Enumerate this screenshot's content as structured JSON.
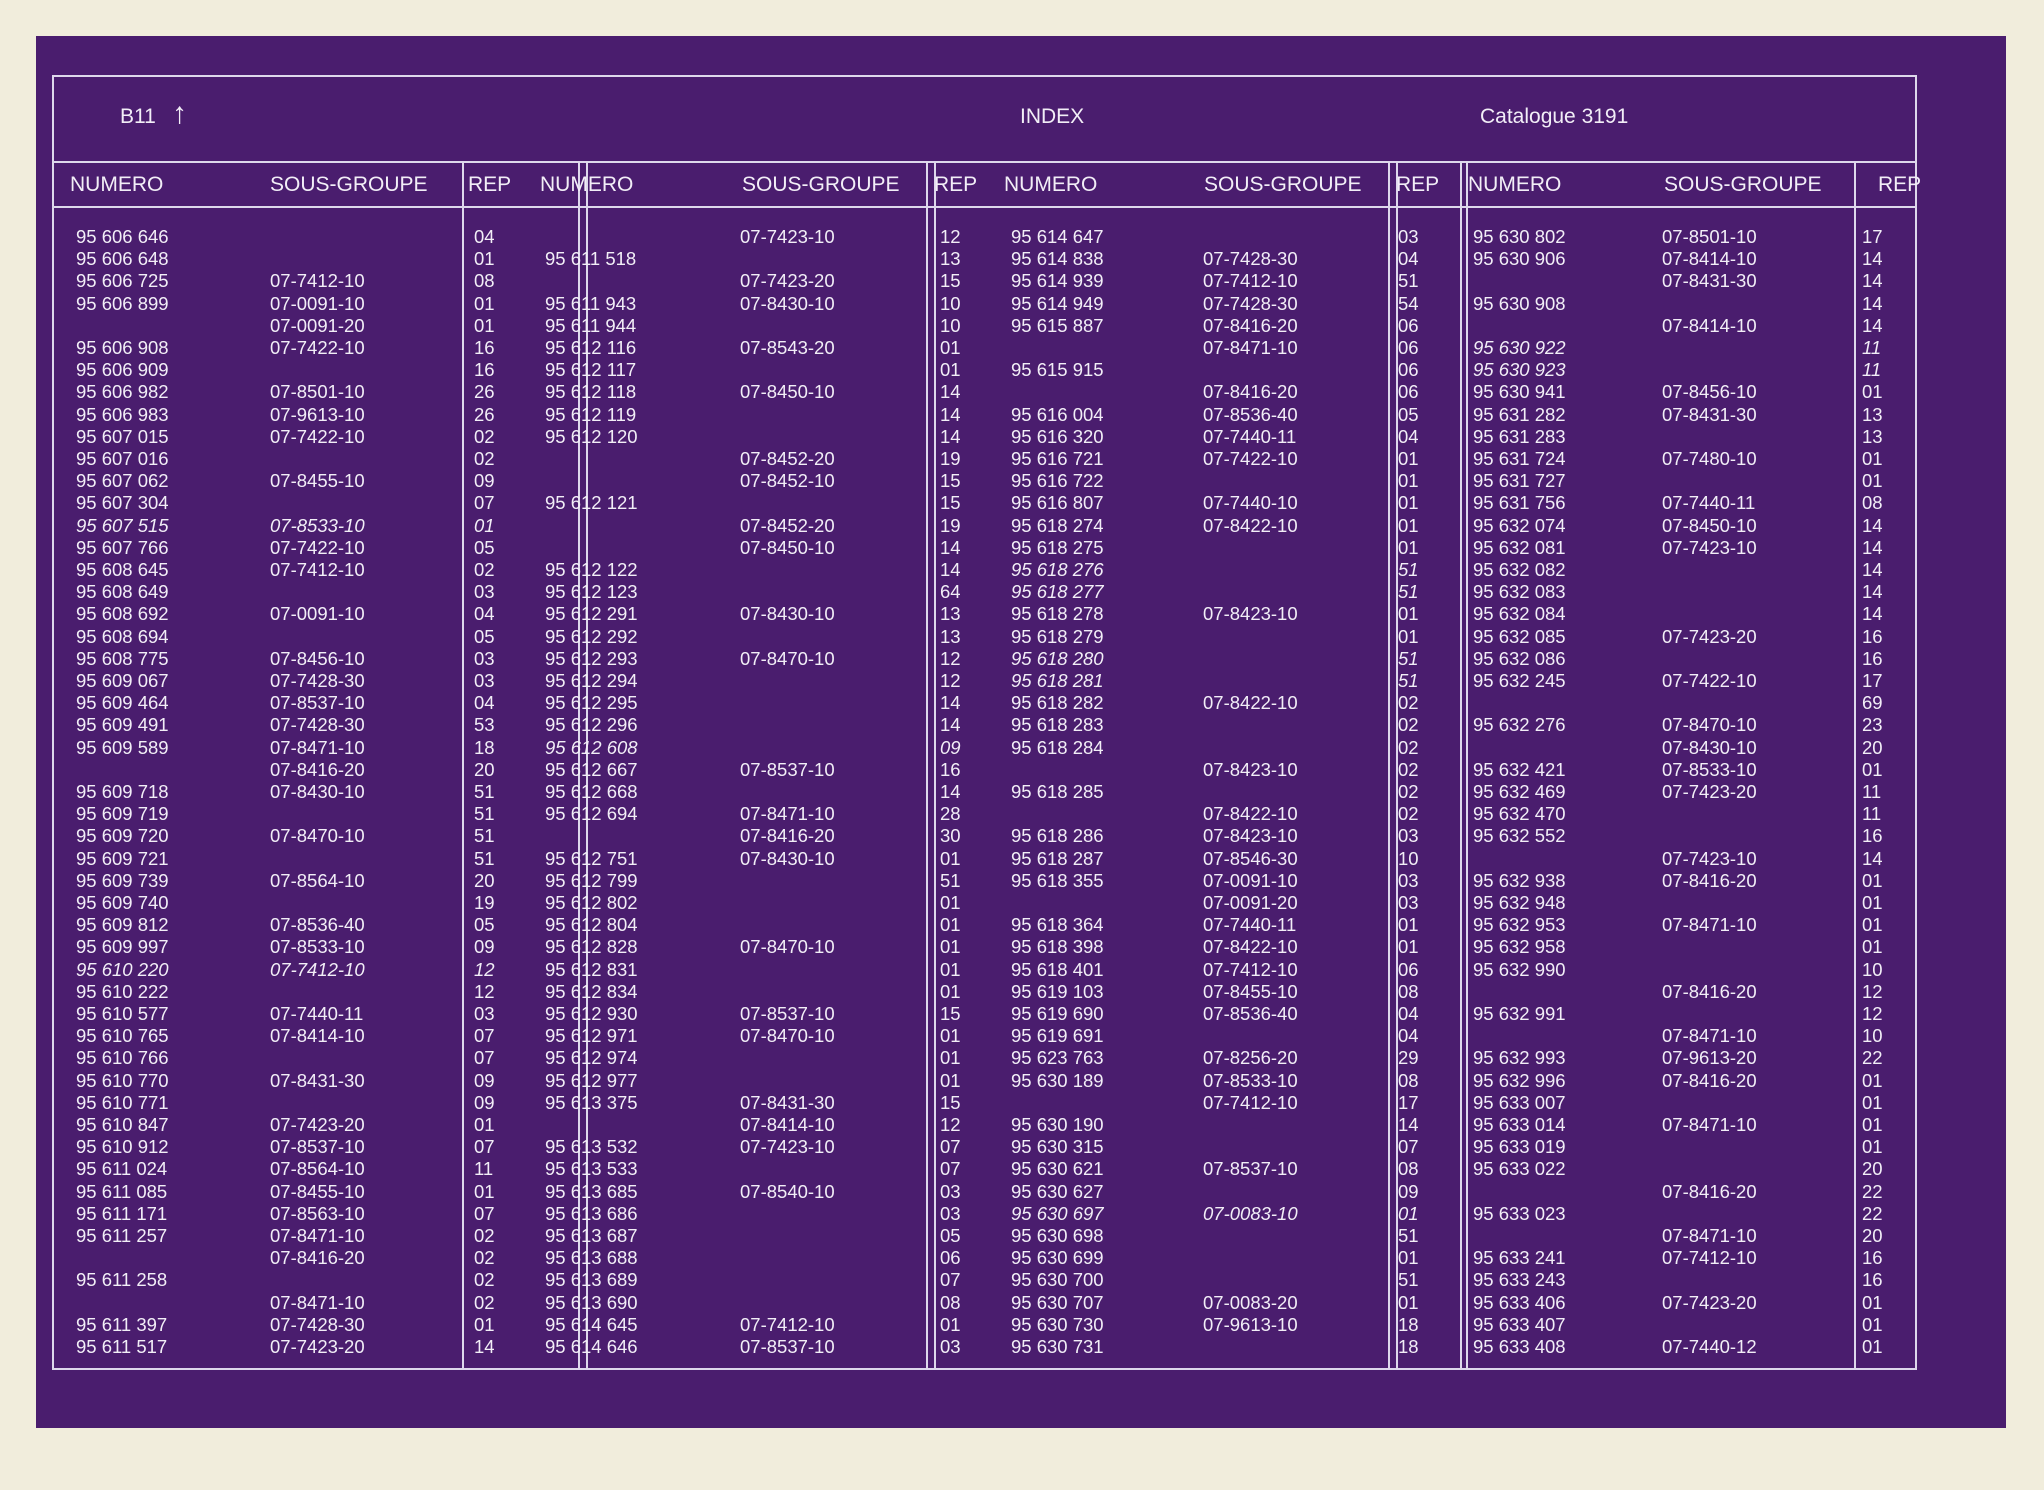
{
  "header": {
    "code": "B11",
    "arrow": "↑",
    "title": "INDEX",
    "catalogue": "Catalogue  3191"
  },
  "column_labels": {
    "numero": "NUMERO",
    "sous_groupe": "SOUS-GROUPE",
    "rep": "REP"
  },
  "panels": [
    {
      "rows": [
        {
          "n": "95 606 646",
          "s": "",
          "r": "04"
        },
        {
          "n": "95 606 648",
          "s": "",
          "r": "01"
        },
        {
          "n": "95 606 725",
          "s": "07-7412-10",
          "r": "08"
        },
        {
          "n": "95 606 899",
          "s": "07-0091-10",
          "r": "01"
        },
        {
          "n": "",
          "s": "07-0091-20",
          "r": "01"
        },
        {
          "n": "95 606 908",
          "s": "07-7422-10",
          "r": "16"
        },
        {
          "n": "95 606 909",
          "s": "",
          "r": "16"
        },
        {
          "n": "95 606 982",
          "s": "07-8501-10",
          "r": "26"
        },
        {
          "n": "95 606 983",
          "s": "07-9613-10",
          "r": "26"
        },
        {
          "n": "95 607 015",
          "s": "07-7422-10",
          "r": "02"
        },
        {
          "n": "95 607 016",
          "s": "",
          "r": "02"
        },
        {
          "n": "95 607 062",
          "s": "07-8455-10",
          "r": "09"
        },
        {
          "n": "95 607 304",
          "s": "",
          "r": "07"
        },
        {
          "n": "95 607 515",
          "s": "07-8533-10",
          "r": "01",
          "i": true
        },
        {
          "n": "95 607 766",
          "s": "07-7422-10",
          "r": "05"
        },
        {
          "n": "95 608 645",
          "s": "07-7412-10",
          "r": "02"
        },
        {
          "n": "95 608 649",
          "s": "",
          "r": "03"
        },
        {
          "n": "95 608 692",
          "s": "07-0091-10",
          "r": "04"
        },
        {
          "n": "95 608 694",
          "s": "",
          "r": "05"
        },
        {
          "n": "95 608 775",
          "s": "07-8456-10",
          "r": "03"
        },
        {
          "n": "95 609 067",
          "s": "07-7428-30",
          "r": "03"
        },
        {
          "n": "95 609 464",
          "s": "07-8537-10",
          "r": "04"
        },
        {
          "n": "95 609 491",
          "s": "07-7428-30",
          "r": "53"
        },
        {
          "n": "95 609 589",
          "s": "07-8471-10",
          "r": "18"
        },
        {
          "n": "",
          "s": "07-8416-20",
          "r": "20"
        },
        {
          "n": "95 609 718",
          "s": "07-8430-10",
          "r": "51"
        },
        {
          "n": "95 609 719",
          "s": "",
          "r": "51"
        },
        {
          "n": "95 609 720",
          "s": "07-8470-10",
          "r": "51"
        },
        {
          "n": "95 609 721",
          "s": "",
          "r": "51"
        },
        {
          "n": "95 609 739",
          "s": "07-8564-10",
          "r": "20"
        },
        {
          "n": "95 609 740",
          "s": "",
          "r": "19"
        },
        {
          "n": "95 609 812",
          "s": "07-8536-40",
          "r": "05"
        },
        {
          "n": "95 609 997",
          "s": "07-8533-10",
          "r": "09"
        },
        {
          "n": "95 610 220",
          "s": "07-7412-10",
          "r": "12",
          "i": true
        },
        {
          "n": "95 610 222",
          "s": "",
          "r": "12"
        },
        {
          "n": "95 610 577",
          "s": "07-7440-11",
          "r": "03"
        },
        {
          "n": "95 610 765",
          "s": "07-8414-10",
          "r": "07"
        },
        {
          "n": "95 610 766",
          "s": "",
          "r": "07"
        },
        {
          "n": "95 610 770",
          "s": "07-8431-30",
          "r": "09"
        },
        {
          "n": "95 610 771",
          "s": "",
          "r": "09"
        },
        {
          "n": "95 610 847",
          "s": "07-7423-20",
          "r": "01"
        },
        {
          "n": "95 610 912",
          "s": "07-8537-10",
          "r": "07"
        },
        {
          "n": "95 611 024",
          "s": "07-8564-10",
          "r": "11"
        },
        {
          "n": "95 611 085",
          "s": "07-8455-10",
          "r": "01"
        },
        {
          "n": "95 611 171",
          "s": "07-8563-10",
          "r": "07"
        },
        {
          "n": "95 611 257",
          "s": "07-8471-10",
          "r": "02"
        },
        {
          "n": "",
          "s": "07-8416-20",
          "r": "02"
        },
        {
          "n": "95 611 258",
          "s": "",
          "r": "02"
        },
        {
          "n": "",
          "s": "07-8471-10",
          "r": "02"
        },
        {
          "n": "95 611 397",
          "s": "07-7428-30",
          "r": "01"
        },
        {
          "n": "95 611 517",
          "s": "07-7423-20",
          "r": "14"
        }
      ]
    },
    {
      "rows": [
        {
          "n": "",
          "s": "07-7423-10",
          "r": "12"
        },
        {
          "n": "95 611 518",
          "s": "",
          "r": "13"
        },
        {
          "n": "",
          "s": "07-7423-20",
          "r": "15"
        },
        {
          "n": "95 611 943",
          "s": "07-8430-10",
          "r": "10"
        },
        {
          "n": "95 611 944",
          "s": "",
          "r": "10"
        },
        {
          "n": "95 612 116",
          "s": "07-8543-20",
          "r": "01"
        },
        {
          "n": "95 612 117",
          "s": "",
          "r": "01"
        },
        {
          "n": "95 612 118",
          "s": "07-8450-10",
          "r": "14"
        },
        {
          "n": "95 612 119",
          "s": "",
          "r": "14"
        },
        {
          "n": "95 612 120",
          "s": "",
          "r": "14"
        },
        {
          "n": "",
          "s": "07-8452-20",
          "r": "19"
        },
        {
          "n": "",
          "s": "07-8452-10",
          "r": "15"
        },
        {
          "n": "95 612 121",
          "s": "",
          "r": "15"
        },
        {
          "n": "",
          "s": "07-8452-20",
          "r": "19"
        },
        {
          "n": "",
          "s": "07-8450-10",
          "r": "14"
        },
        {
          "n": "95 612 122",
          "s": "",
          "r": "14"
        },
        {
          "n": "95 612 123",
          "s": "",
          "r": "64"
        },
        {
          "n": "95 612 291",
          "s": "07-8430-10",
          "r": "13"
        },
        {
          "n": "95 612 292",
          "s": "",
          "r": "13"
        },
        {
          "n": "95 612 293",
          "s": "07-8470-10",
          "r": "12"
        },
        {
          "n": "95 612 294",
          "s": "",
          "r": "12"
        },
        {
          "n": "95 612 295",
          "s": "",
          "r": "14"
        },
        {
          "n": "95 612 296",
          "s": "",
          "r": "14"
        },
        {
          "n": "95 612 608",
          "s": "",
          "r": "09",
          "i": true
        },
        {
          "n": "95 612 667",
          "s": "07-8537-10",
          "r": "16"
        },
        {
          "n": "95 612 668",
          "s": "",
          "r": "14"
        },
        {
          "n": "95 612 694",
          "s": "07-8471-10",
          "r": "28"
        },
        {
          "n": "",
          "s": "07-8416-20",
          "r": "30"
        },
        {
          "n": "95 612 751",
          "s": "07-8430-10",
          "r": "01"
        },
        {
          "n": "95 612 799",
          "s": "",
          "r": "51"
        },
        {
          "n": "95 612 802",
          "s": "",
          "r": "01"
        },
        {
          "n": "95 612 804",
          "s": "",
          "r": "01"
        },
        {
          "n": "95 612 828",
          "s": "07-8470-10",
          "r": "01"
        },
        {
          "n": "95 612 831",
          "s": "",
          "r": "01"
        },
        {
          "n": "95 612 834",
          "s": "",
          "r": "01"
        },
        {
          "n": "95 612 930",
          "s": "07-8537-10",
          "r": "15"
        },
        {
          "n": "95 612 971",
          "s": "07-8470-10",
          "r": "01"
        },
        {
          "n": "95 612 974",
          "s": "",
          "r": "01"
        },
        {
          "n": "95 612 977",
          "s": "",
          "r": "01"
        },
        {
          "n": "95 613 375",
          "s": "07-8431-30",
          "r": "15"
        },
        {
          "n": "",
          "s": "07-8414-10",
          "r": "12"
        },
        {
          "n": "95 613 532",
          "s": "07-7423-10",
          "r": "07"
        },
        {
          "n": "95 613 533",
          "s": "",
          "r": "07"
        },
        {
          "n": "95 613 685",
          "s": "07-8540-10",
          "r": "03"
        },
        {
          "n": "95 613 686",
          "s": "",
          "r": "03"
        },
        {
          "n": "95 613 687",
          "s": "",
          "r": "05"
        },
        {
          "n": "95 613 688",
          "s": "",
          "r": "06"
        },
        {
          "n": "95 613 689",
          "s": "",
          "r": "07"
        },
        {
          "n": "95 613 690",
          "s": "",
          "r": "08"
        },
        {
          "n": "95 614 645",
          "s": "07-7412-10",
          "r": "01"
        },
        {
          "n": "95 614 646",
          "s": "07-8537-10",
          "r": "03"
        }
      ]
    },
    {
      "rows": [
        {
          "n": "95 614 647",
          "s": "",
          "r": "03"
        },
        {
          "n": "95 614 838",
          "s": "07-7428-30",
          "r": "04"
        },
        {
          "n": "95 614 939",
          "s": "07-7412-10",
          "r": "51"
        },
        {
          "n": "95 614 949",
          "s": "07-7428-30",
          "r": "54"
        },
        {
          "n": "95 615 887",
          "s": "07-8416-20",
          "r": "06"
        },
        {
          "n": "",
          "s": "07-8471-10",
          "r": "06"
        },
        {
          "n": "95 615 915",
          "s": "",
          "r": "06"
        },
        {
          "n": "",
          "s": "07-8416-20",
          "r": "06"
        },
        {
          "n": "95 616 004",
          "s": "07-8536-40",
          "r": "05"
        },
        {
          "n": "95 616 320",
          "s": "07-7440-11",
          "r": "04"
        },
        {
          "n": "95 616 721",
          "s": "07-7422-10",
          "r": "01"
        },
        {
          "n": "95 616 722",
          "s": "",
          "r": "01"
        },
        {
          "n": "95 616 807",
          "s": "07-7440-10",
          "r": "01"
        },
        {
          "n": "95 618 274",
          "s": "07-8422-10",
          "r": "01"
        },
        {
          "n": "95 618 275",
          "s": "",
          "r": "01"
        },
        {
          "n": "95 618 276",
          "s": "",
          "r": "51",
          "i": true
        },
        {
          "n": "95 618 277",
          "s": "",
          "r": "51",
          "i": true
        },
        {
          "n": "95 618 278",
          "s": "07-8423-10",
          "r": "01"
        },
        {
          "n": "95 618 279",
          "s": "",
          "r": "01"
        },
        {
          "n": "95 618 280",
          "s": "",
          "r": "51",
          "i": true
        },
        {
          "n": "95 618 281",
          "s": "",
          "r": "51",
          "i": true
        },
        {
          "n": "95 618 282",
          "s": "07-8422-10",
          "r": "02"
        },
        {
          "n": "95 618 283",
          "s": "",
          "r": "02"
        },
        {
          "n": "95 618 284",
          "s": "",
          "r": "02"
        },
        {
          "n": "",
          "s": "07-8423-10",
          "r": "02"
        },
        {
          "n": "95 618 285",
          "s": "",
          "r": "02"
        },
        {
          "n": "",
          "s": "07-8422-10",
          "r": "02"
        },
        {
          "n": "95 618 286",
          "s": "07-8423-10",
          "r": "03"
        },
        {
          "n": "95 618 287",
          "s": "07-8546-30",
          "r": "10"
        },
        {
          "n": "95 618 355",
          "s": "07-0091-10",
          "r": "03"
        },
        {
          "n": "",
          "s": "07-0091-20",
          "r": "03"
        },
        {
          "n": "95 618 364",
          "s": "07-7440-11",
          "r": "01"
        },
        {
          "n": "95 618 398",
          "s": "07-8422-10",
          "r": "01"
        },
        {
          "n": "95 618 401",
          "s": "07-7412-10",
          "r": "06"
        },
        {
          "n": "95 619 103",
          "s": "07-8455-10",
          "r": "08"
        },
        {
          "n": "95 619 690",
          "s": "07-8536-40",
          "r": "04"
        },
        {
          "n": "95 619 691",
          "s": "",
          "r": "04"
        },
        {
          "n": "95 623 763",
          "s": "07-8256-20",
          "r": "29"
        },
        {
          "n": "95 630 189",
          "s": "07-8533-10",
          "r": "08"
        },
        {
          "n": "",
          "s": "07-7412-10",
          "r": "17"
        },
        {
          "n": "95 630 190",
          "s": "",
          "r": "14"
        },
        {
          "n": "95 630 315",
          "s": "",
          "r": "07"
        },
        {
          "n": "95 630 621",
          "s": "07-8537-10",
          "r": "08"
        },
        {
          "n": "95 630 627",
          "s": "",
          "r": "09"
        },
        {
          "n": "95 630 697",
          "s": "07-0083-10",
          "r": "01",
          "i": true
        },
        {
          "n": "95 630 698",
          "s": "",
          "r": "51"
        },
        {
          "n": "95 630 699",
          "s": "",
          "r": "01"
        },
        {
          "n": "95 630 700",
          "s": "",
          "r": "51"
        },
        {
          "n": "95 630 707",
          "s": "07-0083-20",
          "r": "01"
        },
        {
          "n": "95 630 730",
          "s": "07-9613-10",
          "r": "18"
        },
        {
          "n": "95 630 731",
          "s": "",
          "r": "18"
        }
      ]
    },
    {
      "rows": [
        {
          "n": "95 630 802",
          "s": "07-8501-10",
          "r": "17"
        },
        {
          "n": "95 630 906",
          "s": "07-8414-10",
          "r": "14"
        },
        {
          "n": "",
          "s": "07-8431-30",
          "r": "14"
        },
        {
          "n": "95 630 908",
          "s": "",
          "r": "14"
        },
        {
          "n": "",
          "s": "07-8414-10",
          "r": "14"
        },
        {
          "n": "95 630 922",
          "s": "",
          "r": "11",
          "i": true
        },
        {
          "n": "95 630 923",
          "s": "",
          "r": "11",
          "i": true
        },
        {
          "n": "95 630 941",
          "s": "07-8456-10",
          "r": "01"
        },
        {
          "n": "95 631 282",
          "s": "07-8431-30",
          "r": "13"
        },
        {
          "n": "95 631 283",
          "s": "",
          "r": "13"
        },
        {
          "n": "95 631 724",
          "s": "07-7480-10",
          "r": "01"
        },
        {
          "n": "95 631 727",
          "s": "",
          "r": "01"
        },
        {
          "n": "95 631 756",
          "s": "07-7440-11",
          "r": "08"
        },
        {
          "n": "95 632 074",
          "s": "07-8450-10",
          "r": "14"
        },
        {
          "n": "95 632 081",
          "s": "07-7423-10",
          "r": "14"
        },
        {
          "n": "95 632 082",
          "s": "",
          "r": "14"
        },
        {
          "n": "95 632 083",
          "s": "",
          "r": "14"
        },
        {
          "n": "95 632 084",
          "s": "",
          "r": "14"
        },
        {
          "n": "95 632 085",
          "s": "07-7423-20",
          "r": "16"
        },
        {
          "n": "95 632 086",
          "s": "",
          "r": "16"
        },
        {
          "n": "95 632 245",
          "s": "07-7422-10",
          "r": "17"
        },
        {
          "n": "",
          "s": "",
          "r": "69"
        },
        {
          "n": "95 632 276",
          "s": "07-8470-10",
          "r": "23"
        },
        {
          "n": "",
          "s": "07-8430-10",
          "r": "20"
        },
        {
          "n": "95 632 421",
          "s": "07-8533-10",
          "r": "01"
        },
        {
          "n": "95 632 469",
          "s": "07-7423-20",
          "r": "11"
        },
        {
          "n": "95 632 470",
          "s": "",
          "r": "11"
        },
        {
          "n": "95 632 552",
          "s": "",
          "r": "16"
        },
        {
          "n": "",
          "s": "07-7423-10",
          "r": "14"
        },
        {
          "n": "95 632 938",
          "s": "07-8416-20",
          "r": "01"
        },
        {
          "n": "95 632 948",
          "s": "",
          "r": "01"
        },
        {
          "n": "95 632 953",
          "s": "07-8471-10",
          "r": "01"
        },
        {
          "n": "95 632 958",
          "s": "",
          "r": "01"
        },
        {
          "n": "95 632 990",
          "s": "",
          "r": "10"
        },
        {
          "n": "",
          "s": "07-8416-20",
          "r": "12"
        },
        {
          "n": "95 632 991",
          "s": "",
          "r": "12"
        },
        {
          "n": "",
          "s": "07-8471-10",
          "r": "10"
        },
        {
          "n": "95 632 993",
          "s": "07-9613-20",
          "r": "22"
        },
        {
          "n": "95 632 996",
          "s": "07-8416-20",
          "r": "01"
        },
        {
          "n": "95 633 007",
          "s": "",
          "r": "01"
        },
        {
          "n": "95 633 014",
          "s": "07-8471-10",
          "r": "01"
        },
        {
          "n": "95 633 019",
          "s": "",
          "r": "01"
        },
        {
          "n": "95 633 022",
          "s": "",
          "r": "20"
        },
        {
          "n": "",
          "s": "07-8416-20",
          "r": "22"
        },
        {
          "n": "95 633 023",
          "s": "",
          "r": "22"
        },
        {
          "n": "",
          "s": "07-8471-10",
          "r": "20"
        },
        {
          "n": "95 633 241",
          "s": "07-7412-10",
          "r": "16"
        },
        {
          "n": "95 633 243",
          "s": "",
          "r": "16"
        },
        {
          "n": "95 633 406",
          "s": "07-7423-20",
          "r": "01"
        },
        {
          "n": "95 633 407",
          "s": "",
          "r": "01"
        },
        {
          "n": "95 633 408",
          "s": "07-7440-12",
          "r": "01"
        }
      ]
    }
  ]
}
